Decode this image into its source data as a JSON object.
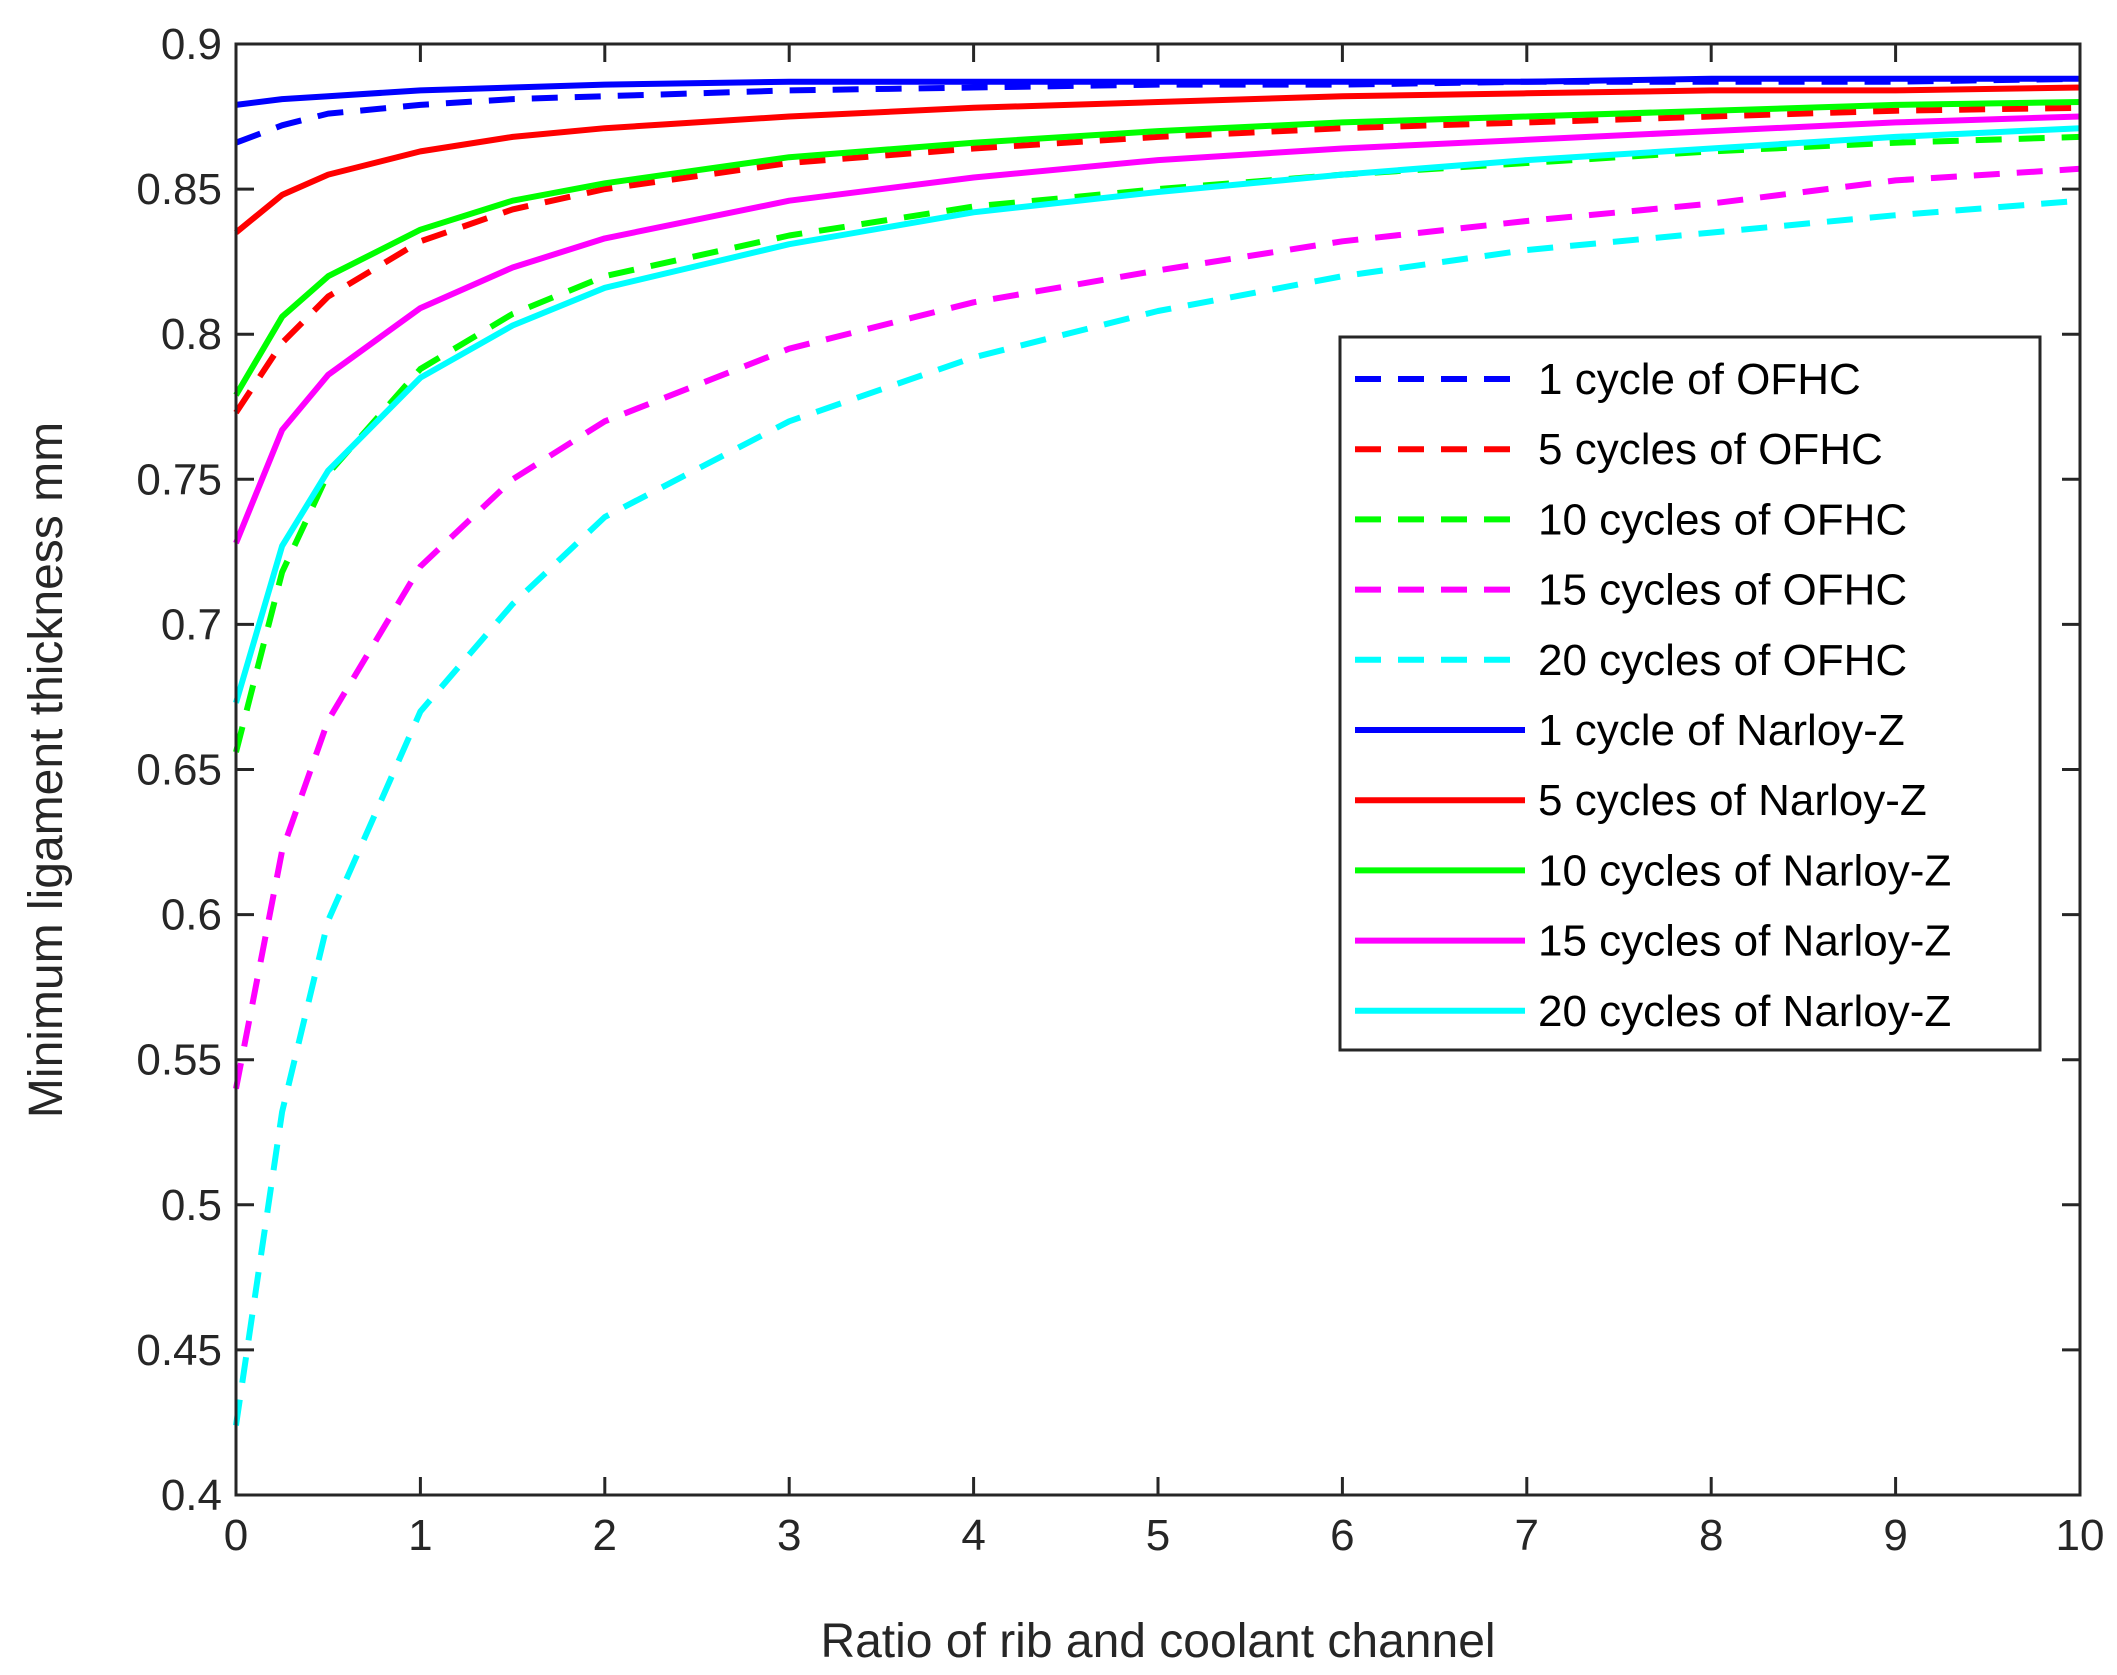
{
  "chart_data": {
    "type": "line",
    "title": "",
    "xlabel": "Ratio of rib and coolant channel",
    "ylabel": "Minimum ligament thickness mm",
    "xlim": [
      0,
      10
    ],
    "ylim": [
      0.4,
      0.9
    ],
    "x_ticks": [
      0,
      1,
      2,
      3,
      4,
      5,
      6,
      7,
      8,
      9,
      10
    ],
    "y_ticks": [
      0.4,
      0.45,
      0.5,
      0.55,
      0.6,
      0.65,
      0.7,
      0.75,
      0.8,
      0.85,
      0.9
    ],
    "x_tick_labels": [
      "0",
      "1",
      "2",
      "3",
      "4",
      "5",
      "6",
      "7",
      "8",
      "9",
      "10"
    ],
    "y_tick_labels": [
      "0.4",
      "0.45",
      "0.5",
      "0.55",
      "0.6",
      "0.65",
      "0.7",
      "0.75",
      "0.8",
      "0.85",
      "0.9"
    ],
    "grid": false,
    "legend_position": "right",
    "x": [
      0,
      0.25,
      0.5,
      1,
      1.5,
      2,
      3,
      4,
      5,
      6,
      7,
      8,
      9,
      10
    ],
    "series": [
      {
        "name": "1 cycle of OFHC",
        "color": "#0000ff",
        "style": "dashed",
        "values": [
          0.866,
          0.872,
          0.876,
          0.879,
          0.881,
          0.882,
          0.884,
          0.885,
          0.886,
          0.886,
          0.887,
          0.887,
          0.887,
          0.888
        ]
      },
      {
        "name": "5 cycles of OFHC",
        "color": "#ff0000",
        "style": "dashed",
        "values": [
          0.773,
          0.797,
          0.813,
          0.832,
          0.843,
          0.85,
          0.859,
          0.864,
          0.868,
          0.871,
          0.873,
          0.875,
          0.877,
          0.878
        ]
      },
      {
        "name": "10 cycles of OFHC",
        "color": "#00ff00",
        "style": "dashed",
        "values": [
          0.656,
          0.718,
          0.752,
          0.788,
          0.807,
          0.82,
          0.834,
          0.844,
          0.85,
          0.855,
          0.859,
          0.863,
          0.866,
          0.868
        ]
      },
      {
        "name": "15 cycles of OFHC",
        "color": "#ff00ff",
        "style": "dashed",
        "values": [
          0.54,
          0.622,
          0.667,
          0.72,
          0.75,
          0.77,
          0.795,
          0.811,
          0.822,
          0.832,
          0.839,
          0.845,
          0.853,
          0.857
        ]
      },
      {
        "name": "20 cycles of OFHC",
        "color": "#00ffff",
        "style": "dashed",
        "values": [
          0.424,
          0.532,
          0.598,
          0.67,
          0.707,
          0.737,
          0.77,
          0.792,
          0.808,
          0.82,
          0.829,
          0.835,
          0.841,
          0.846
        ]
      },
      {
        "name": "1 cycle of Narloy-Z",
        "color": "#0000ff",
        "style": "solid",
        "values": [
          0.879,
          0.881,
          0.882,
          0.884,
          0.885,
          0.886,
          0.887,
          0.887,
          0.887,
          0.887,
          0.887,
          0.888,
          0.888,
          0.888
        ]
      },
      {
        "name": "5 cycles of Narloy-Z",
        "color": "#ff0000",
        "style": "solid",
        "values": [
          0.835,
          0.848,
          0.855,
          0.863,
          0.868,
          0.871,
          0.875,
          0.878,
          0.88,
          0.882,
          0.883,
          0.884,
          0.884,
          0.885
        ]
      },
      {
        "name": "10 cycles of Narloy-Z",
        "color": "#00ff00",
        "style": "solid",
        "values": [
          0.779,
          0.806,
          0.82,
          0.836,
          0.846,
          0.852,
          0.861,
          0.866,
          0.87,
          0.873,
          0.875,
          0.877,
          0.879,
          0.88
        ]
      },
      {
        "name": "15 cycles of Narloy-Z",
        "color": "#ff00ff",
        "style": "solid",
        "values": [
          0.728,
          0.767,
          0.786,
          0.809,
          0.823,
          0.833,
          0.846,
          0.854,
          0.86,
          0.864,
          0.867,
          0.87,
          0.873,
          0.875
        ]
      },
      {
        "name": "20 cycles of Narloy-Z",
        "color": "#00ffff",
        "style": "solid",
        "values": [
          0.673,
          0.727,
          0.753,
          0.785,
          0.803,
          0.816,
          0.831,
          0.842,
          0.849,
          0.855,
          0.86,
          0.864,
          0.868,
          0.871
        ]
      }
    ]
  }
}
